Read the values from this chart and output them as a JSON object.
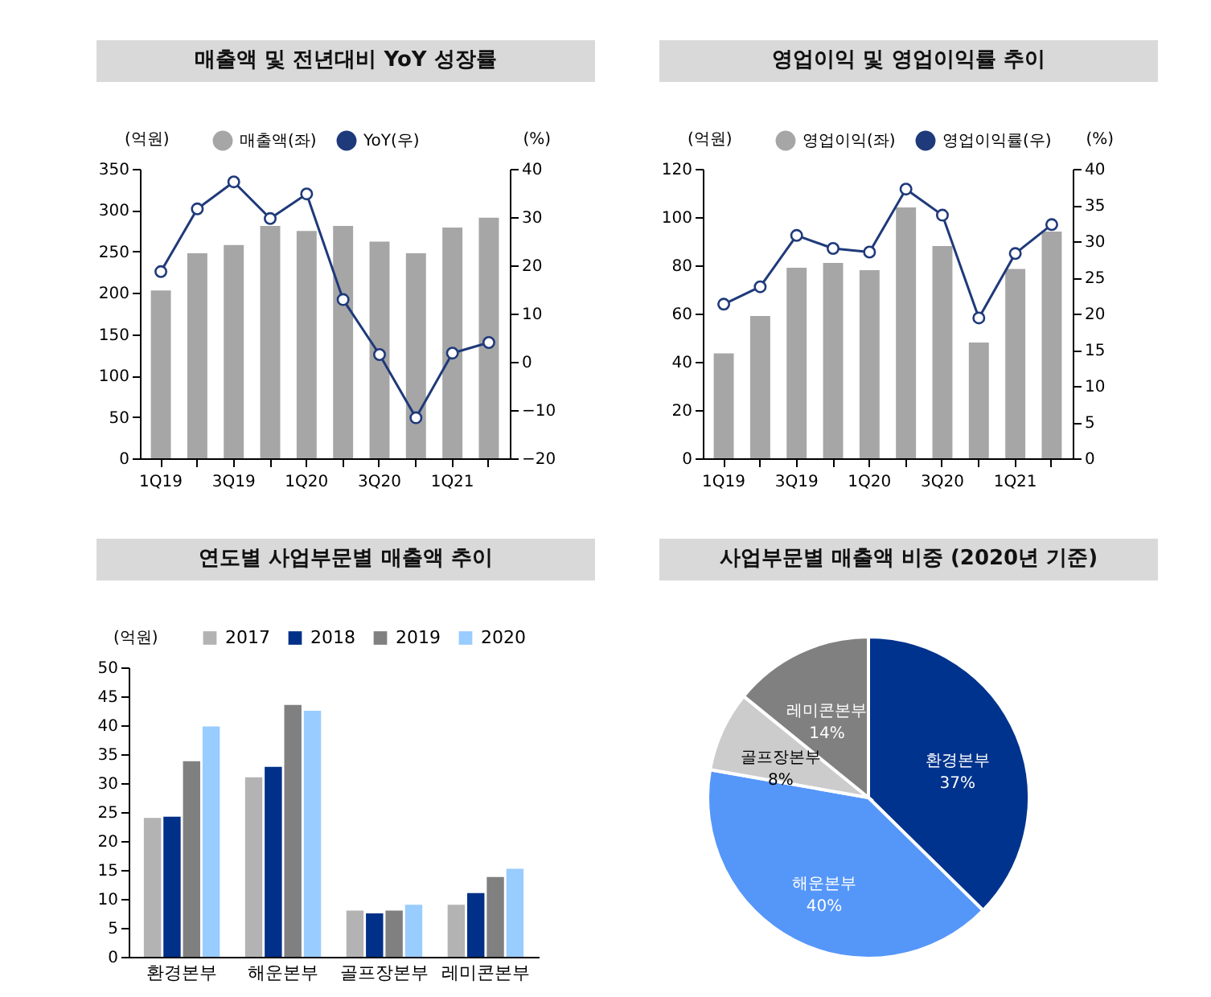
{
  "chart_data": [
    {
      "type": "bar",
      "title": "매출액 및 전년대비 YoY 성장률",
      "ylabel": "(억원)",
      "y2label": "(%)",
      "categories": [
        "1Q19",
        null,
        "3Q19",
        null,
        "1Q20",
        null,
        "3Q20",
        null,
        "1Q21",
        null
      ],
      "series": [
        {
          "name": "매출액(좌)",
          "type": "bar",
          "color": "#a6a6a6",
          "values": [
            203,
            248,
            258,
            281,
            275,
            281,
            262,
            248,
            279,
            291
          ]
        },
        {
          "name": "YoY(우)",
          "type": "line",
          "axis": "y2",
          "color": "#1f3a7a",
          "values": [
            18.7,
            31.7,
            37.3,
            29.7,
            34.8,
            12.9,
            1.5,
            -11.6,
            1.8,
            4.0
          ]
        }
      ],
      "ylim": [
        0,
        350
      ],
      "yticks": [
        0,
        50,
        100,
        150,
        200,
        250,
        300,
        350
      ],
      "y2lim": [
        -20,
        40
      ],
      "y2ticks": [
        -20,
        -10,
        0,
        10,
        20,
        30,
        40
      ],
      "legend": "top",
      "marker": "circle",
      "grid": false
    },
    {
      "type": "bar",
      "title": "영업이익 및 영업이익률 추이",
      "ylabel": "(억원)",
      "y2label": "(%)",
      "categories": [
        "1Q19",
        null,
        "3Q19",
        null,
        "1Q20",
        null,
        "3Q20",
        null,
        "1Q21",
        null
      ],
      "series": [
        {
          "name": "영업이익(좌)",
          "type": "bar",
          "color": "#a6a6a6",
          "values": [
            43.5,
            59,
            79,
            81,
            78,
            104,
            88,
            48,
            78.5,
            94
          ]
        },
        {
          "name": "영업이익률(우)",
          "type": "line",
          "axis": "y2",
          "color": "#1f3a7a",
          "values": [
            21.3,
            23.7,
            30.8,
            29,
            28.5,
            37.2,
            33.6,
            19.4,
            28.3,
            32.3
          ]
        }
      ],
      "ylim": [
        0,
        120
      ],
      "yticks": [
        0,
        20,
        40,
        60,
        80,
        100,
        120
      ],
      "y2lim": [
        0,
        40
      ],
      "y2ticks": [
        0,
        5,
        10,
        15,
        20,
        25,
        30,
        35,
        40
      ],
      "legend": "top",
      "marker": "circle",
      "grid": false
    },
    {
      "type": "bar",
      "title": "연도별 사업부문별 매출액 추이",
      "ylabel": "(억원)",
      "categories": [
        "환경본부",
        "해운본부",
        "골프장본부",
        "레미콘본부"
      ],
      "series": [
        {
          "name": "2017",
          "color": "#b3b3b3",
          "values": [
            24,
            31,
            8,
            9
          ]
        },
        {
          "name": "2018",
          "color": "#003087",
          "values": [
            24.2,
            32.8,
            7.5,
            11
          ]
        },
        {
          "name": "2019",
          "color": "#808080",
          "values": [
            33.8,
            43.5,
            8,
            13.8
          ]
        },
        {
          "name": "2020",
          "color": "#99ccff",
          "values": [
            39.8,
            42.5,
            9,
            15.2
          ]
        }
      ],
      "ylim": [
        0,
        50
      ],
      "yticks": [
        0,
        5,
        10,
        15,
        20,
        25,
        30,
        35,
        40,
        45,
        50
      ],
      "legend": "top",
      "grid": false
    },
    {
      "type": "pie",
      "title": "사업부문별 매출액 비중 (2020년 기준)",
      "categories": [
        "환경본부",
        "해운본부",
        "골프장본부",
        "레미콘본부"
      ],
      "values": [
        37,
        40,
        8,
        14
      ],
      "value_labels": [
        "37%",
        "40%",
        "8%",
        "14%"
      ],
      "colors": [
        "#00338d",
        "#5596f9",
        "#cccccc",
        "#808080"
      ]
    }
  ]
}
